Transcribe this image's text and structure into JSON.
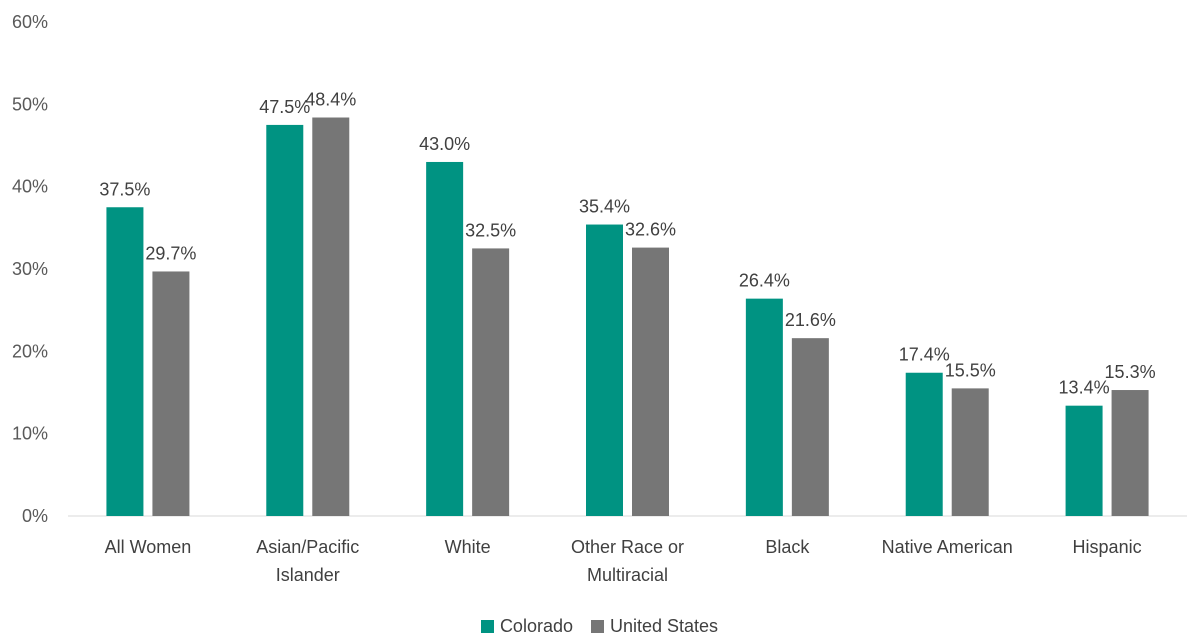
{
  "chart_data": {
    "type": "bar",
    "categories": [
      [
        "All Women"
      ],
      [
        "Asian/Pacific",
        "Islander"
      ],
      [
        "White"
      ],
      [
        "Other Race or",
        "Multiracial"
      ],
      [
        "Black"
      ],
      [
        "Native American"
      ],
      [
        "Hispanic"
      ]
    ],
    "series": [
      {
        "name": "Colorado",
        "color": "#009382",
        "values": [
          37.5,
          47.5,
          43.0,
          35.4,
          26.4,
          17.4,
          13.4
        ]
      },
      {
        "name": "United States",
        "color": "#767676",
        "values": [
          29.7,
          48.4,
          32.5,
          32.6,
          21.6,
          15.5,
          15.3
        ]
      }
    ],
    "y_ticks": [
      "0%",
      "10%",
      "20%",
      "30%",
      "40%",
      "50%",
      "60%"
    ],
    "ylim": [
      0,
      60
    ],
    "value_suffix": "%",
    "grid": false,
    "legend_position": "bottom"
  }
}
